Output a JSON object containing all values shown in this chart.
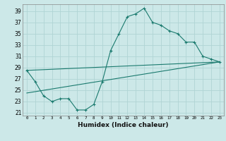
{
  "xlabel": "Humidex (Indice chaleur)",
  "ylabel": "",
  "bg_color": "#cce8e8",
  "grid_color": "#b0d4d4",
  "line_color": "#1a7a6e",
  "xlim": [
    -0.5,
    23.5
  ],
  "ylim": [
    20.5,
    40.2
  ],
  "yticks": [
    21,
    23,
    25,
    27,
    29,
    31,
    33,
    35,
    37,
    39
  ],
  "xticks": [
    0,
    1,
    2,
    3,
    4,
    5,
    6,
    7,
    8,
    9,
    10,
    11,
    12,
    13,
    14,
    15,
    16,
    17,
    18,
    19,
    20,
    21,
    22,
    23
  ],
  "line1_x": [
    0,
    1,
    2,
    3,
    4,
    5,
    6,
    7,
    8,
    9,
    10,
    11,
    12,
    13,
    14,
    15,
    16,
    17,
    18,
    19,
    20,
    21,
    22,
    23
  ],
  "line1_y": [
    28.5,
    26.5,
    24.0,
    23.0,
    23.5,
    23.5,
    21.5,
    21.5,
    22.5,
    26.5,
    32.0,
    35.0,
    38.0,
    38.5,
    39.5,
    37.0,
    36.5,
    35.5,
    35.0,
    33.5,
    33.5,
    31.0,
    30.5,
    30.0
  ],
  "line2_x": [
    0,
    23
  ],
  "line2_y": [
    28.5,
    30.0
  ],
  "line3_x": [
    0,
    23
  ],
  "line3_y": [
    24.5,
    30.0
  ],
  "xtick_labels": [
    "0",
    "1",
    "2",
    "3",
    "4",
    "5",
    "6",
    "7",
    "8",
    "9",
    "10",
    "11",
    "12",
    "13",
    "14",
    "15",
    "16",
    "17",
    "18",
    "19",
    "20",
    "21",
    "22",
    "23"
  ]
}
